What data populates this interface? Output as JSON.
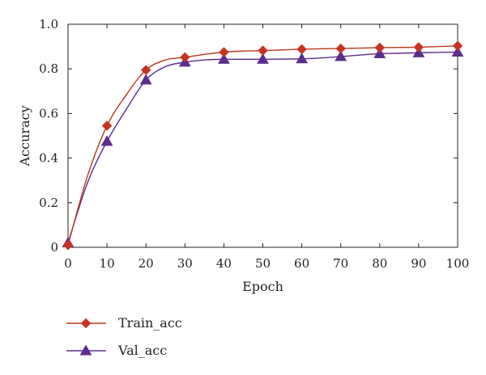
{
  "chart_data": {
    "type": "line",
    "title": "",
    "xlabel": "Epoch",
    "ylabel": "Accuracy",
    "xlim": [
      0,
      100
    ],
    "ylim": [
      0,
      1.0
    ],
    "xticks": [
      0,
      10,
      20,
      30,
      40,
      50,
      60,
      70,
      80,
      90,
      100
    ],
    "xtick_labels": [
      "0",
      "10",
      "20",
      "30",
      "40",
      "50",
      "60",
      "70",
      "80",
      "90",
      "100"
    ],
    "yticks": [
      0,
      0.2,
      0.4,
      0.6,
      0.8,
      1.0
    ],
    "ytick_labels": [
      "0",
      "0.2",
      "0.4",
      "0.6",
      "0.8",
      "1.0"
    ],
    "grid": false,
    "legend_position": "bottom-left, below plot",
    "series": [
      {
        "name": "Train_acc",
        "color": "#b83a1b",
        "marker": "diamond",
        "marker_color": "#c8331f",
        "x": [
          0,
          10,
          20,
          30,
          40,
          50,
          60,
          70,
          80,
          90,
          100
        ],
        "y": [
          0.01,
          0.545,
          0.795,
          0.852,
          0.875,
          0.882,
          0.888,
          0.891,
          0.895,
          0.897,
          0.903
        ],
        "curve_x": [
          0,
          5,
          10,
          15,
          20,
          25,
          30,
          35,
          40,
          45,
          50,
          55,
          60,
          65,
          70,
          75,
          80,
          85,
          90,
          95,
          100
        ],
        "curve_y": [
          0.01,
          0.32,
          0.545,
          0.685,
          0.795,
          0.84,
          0.852,
          0.865,
          0.875,
          0.88,
          0.882,
          0.885,
          0.888,
          0.89,
          0.891,
          0.893,
          0.895,
          0.896,
          0.897,
          0.9,
          0.903
        ]
      },
      {
        "name": "Val_acc",
        "color": "#5b2d8e",
        "marker": "triangle",
        "marker_color": "#5b2d8e",
        "x": [
          0,
          10,
          20,
          30,
          40,
          50,
          60,
          70,
          80,
          90,
          100
        ],
        "y": [
          0.02,
          0.475,
          0.75,
          0.83,
          0.843,
          0.843,
          0.845,
          0.855,
          0.868,
          0.872,
          0.875
        ],
        "curve_x": [
          0,
          5,
          10,
          15,
          20,
          25,
          30,
          35,
          40,
          45,
          50,
          55,
          60,
          65,
          70,
          75,
          80,
          85,
          90,
          95,
          100
        ],
        "curve_y": [
          0.02,
          0.29,
          0.475,
          0.62,
          0.75,
          0.81,
          0.83,
          0.84,
          0.843,
          0.843,
          0.843,
          0.844,
          0.845,
          0.849,
          0.855,
          0.862,
          0.868,
          0.87,
          0.872,
          0.874,
          0.875
        ]
      }
    ]
  }
}
